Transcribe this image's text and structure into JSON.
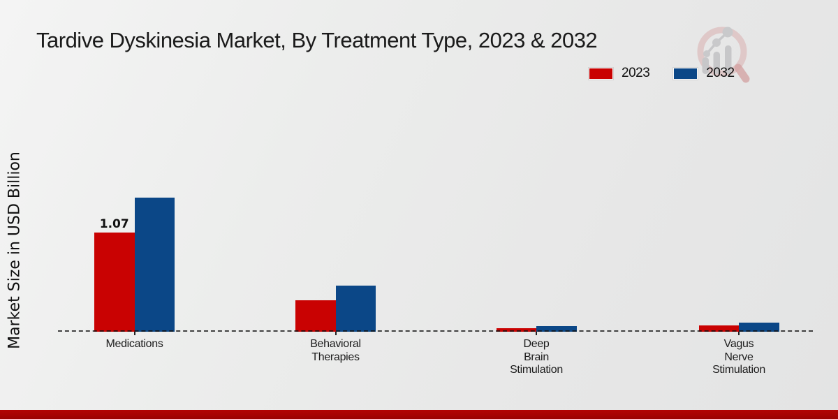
{
  "chart_data": {
    "type": "bar",
    "title": "Tardive Dyskinesia Market, By Treatment Type, 2023 & 2032",
    "ylabel": "Market Size in USD Billion",
    "xlabel": "",
    "unit": "USD Billion",
    "grid": false,
    "legend_position": "top-right",
    "categories": [
      "Medications",
      "Behavioral Therapies",
      "Deep Brain Stimulation",
      "Vagus Nerve Stimulation"
    ],
    "category_label_lines": [
      [
        "Medications"
      ],
      [
        "Behavioral",
        "Therapies"
      ],
      [
        "Deep",
        "Brain",
        "Stimulation"
      ],
      [
        "Vagus",
        "Nerve",
        "Stimulation"
      ]
    ],
    "series": [
      {
        "name": "2023",
        "color": "#c90202",
        "values": [
          1.07,
          0.34,
          0.04,
          0.07
        ]
      },
      {
        "name": "2032",
        "color": "#0b4787",
        "values": [
          1.45,
          0.5,
          0.06,
          0.1
        ]
      }
    ],
    "value_labels": [
      {
        "series_index": 0,
        "category_index": 0,
        "text": "1.07"
      }
    ],
    "baseline_value": 0
  },
  "colors": {
    "bar_2023": "#c90202",
    "bar_2032": "#0b4787",
    "footer_bar": "#b30404",
    "background": "#e9e9e9"
  },
  "watermark": {
    "name": "magnifier-bar-trend-logo"
  }
}
